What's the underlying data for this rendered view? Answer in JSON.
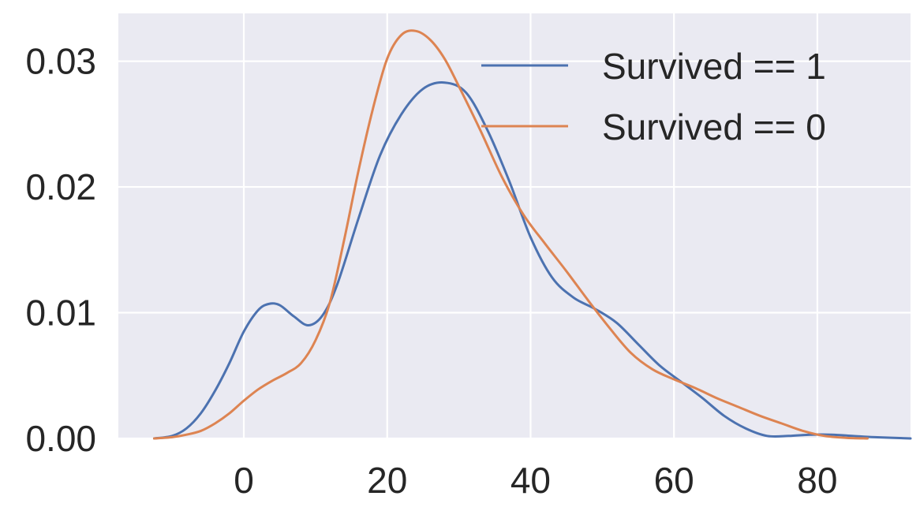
{
  "chart_data": {
    "type": "line",
    "title": "",
    "xlabel": "",
    "ylabel": "",
    "xlim": [
      -17.5,
      93
    ],
    "ylim": [
      0,
      0.0338
    ],
    "grid": true,
    "legend_position": "top-right",
    "x_ticks": [
      0,
      20,
      40,
      60,
      80
    ],
    "x_tick_labels": [
      "0",
      "20",
      "40",
      "60",
      "80"
    ],
    "y_ticks": [
      0,
      0.01,
      0.02,
      0.03
    ],
    "y_tick_labels": [
      "0.00",
      "0.01",
      "0.02",
      "0.03"
    ],
    "series": [
      {
        "name": "Survived == 1",
        "color": "#4c72b0",
        "x": [
          -12.5,
          -10,
          -8,
          -6,
          -4,
          -2,
          0,
          2,
          3.5,
          5,
          7,
          9,
          11,
          13,
          16,
          19,
          22,
          25,
          28,
          31,
          34,
          37,
          40,
          43,
          46,
          49,
          52,
          55,
          58,
          61,
          64,
          67,
          70,
          73,
          76,
          79,
          82,
          85,
          88,
          93
        ],
        "values": [
          0.0,
          0.0002,
          0.0008,
          0.002,
          0.0038,
          0.006,
          0.0085,
          0.0102,
          0.0107,
          0.0106,
          0.0097,
          0.009,
          0.0098,
          0.0122,
          0.0175,
          0.0225,
          0.0258,
          0.0278,
          0.0283,
          0.0275,
          0.0245,
          0.0205,
          0.016,
          0.0128,
          0.0112,
          0.0103,
          0.0092,
          0.0075,
          0.0058,
          0.0045,
          0.0032,
          0.0018,
          0.0008,
          0.0002,
          0.0002,
          0.0003,
          0.0003,
          0.0002,
          0.0001,
          0.0
        ]
      },
      {
        "name": "Survived == 0",
        "color": "#dd8452",
        "x": [
          -12.5,
          -10,
          -8,
          -6,
          -4,
          -2,
          0,
          2,
          4,
          6,
          8,
          10,
          12,
          14,
          16,
          18,
          20,
          22,
          24,
          26,
          28,
          30,
          33,
          36,
          39,
          42,
          45,
          48,
          51,
          54,
          57,
          60,
          63,
          66,
          69,
          72,
          75,
          78,
          81,
          84,
          87
        ],
        "values": [
          0.0,
          0.0001,
          0.0003,
          0.0006,
          0.0012,
          0.002,
          0.003,
          0.0039,
          0.0046,
          0.0052,
          0.006,
          0.0078,
          0.0108,
          0.0158,
          0.0213,
          0.0262,
          0.0302,
          0.0321,
          0.0324,
          0.0317,
          0.0302,
          0.028,
          0.0245,
          0.0208,
          0.0178,
          0.0155,
          0.0133,
          0.011,
          0.0088,
          0.0068,
          0.0055,
          0.0047,
          0.004,
          0.0032,
          0.0025,
          0.0018,
          0.0012,
          0.0006,
          0.0002,
          5e-05,
          0.0
        ]
      }
    ]
  }
}
